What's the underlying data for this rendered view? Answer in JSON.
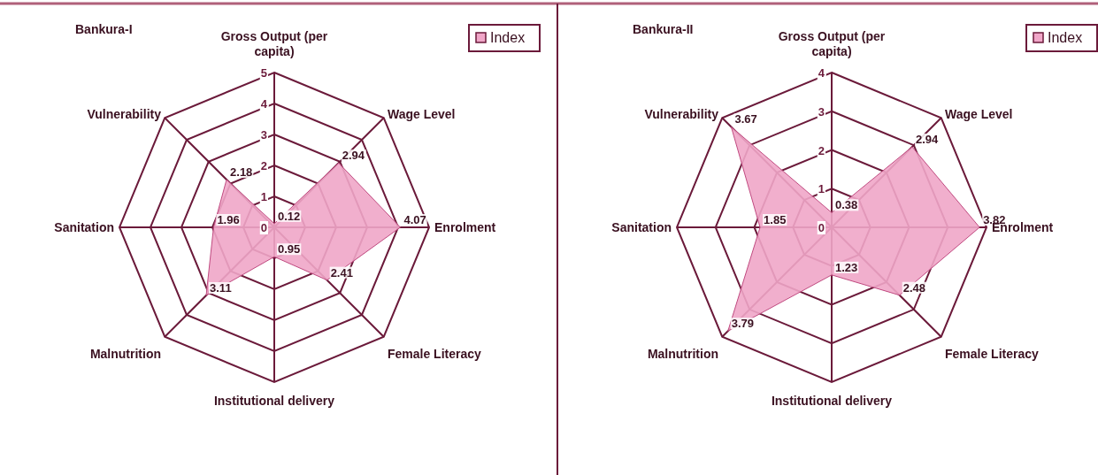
{
  "chart_data": [
    {
      "type": "radar",
      "title": "Bankura-I",
      "categories": [
        "Gross Output (per capita)",
        "Wage Level",
        "Enrolment",
        "Female Literacy",
        "Institutional delivery",
        "Malnutrition",
        "Sanitation",
        "Vulnerability"
      ],
      "series": [
        {
          "name": "Index",
          "color": "#f0a6c8",
          "values": [
            0.12,
            2.94,
            4.07,
            2.41,
            0.95,
            3.11,
            1.96,
            2.18
          ]
        }
      ],
      "ylim": [
        0,
        5
      ],
      "yticks": [
        0,
        1,
        2,
        3,
        4,
        5
      ],
      "data_labels": true,
      "legend": "top right",
      "grid": true
    },
    {
      "type": "radar",
      "title": "Bankura-II",
      "categories": [
        "Gross Output (per capita)",
        "Wage Level",
        "Enrolment",
        "Female Literacy",
        "Institutional delivery",
        "Malnutrition",
        "Sanitation",
        "Vulnerability"
      ],
      "series": [
        {
          "name": "Index",
          "color": "#f0a6c8",
          "values": [
            0.38,
            2.94,
            3.82,
            2.48,
            1.23,
            3.79,
            1.85,
            3.67
          ]
        }
      ],
      "ylim": [
        0,
        4
      ],
      "yticks": [
        0,
        1,
        2,
        3,
        4
      ],
      "data_labels": true,
      "legend": "top right",
      "grid": true
    }
  ]
}
